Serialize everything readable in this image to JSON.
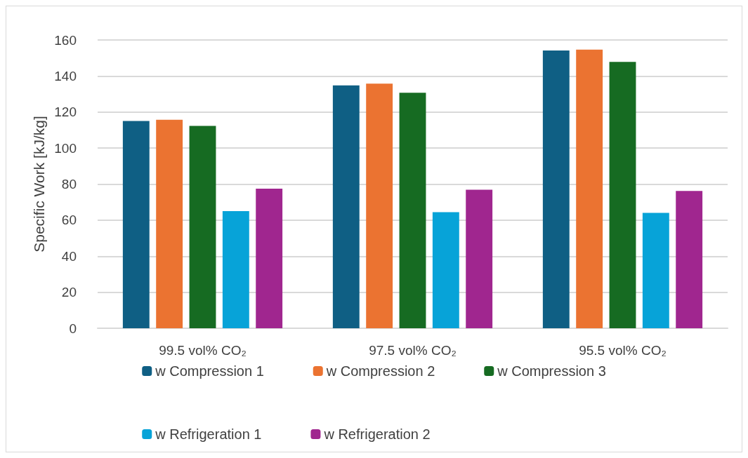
{
  "chart_data": {
    "type": "bar",
    "ylabel": "Specific Work [kJ/kg]",
    "categories": [
      "99.5 vol% CO₂",
      "97.5 vol% CO₂",
      "95.5 vol% CO₂"
    ],
    "series": [
      {
        "name": "w Compression 1",
        "color": "#0f5f84",
        "values": [
          115,
          134.8,
          154.2
        ]
      },
      {
        "name": "w Compression 2",
        "color": "#eb7331",
        "values": [
          115.7,
          135.8,
          154.6
        ]
      },
      {
        "name": "w Compression 3",
        "color": "#166b22",
        "values": [
          112.3,
          130.7,
          147.8
        ]
      },
      {
        "name": "w Refrigeration 1",
        "color": "#07a3d8",
        "values": [
          65,
          64.4,
          64
        ]
      },
      {
        "name": "w Refrigeration 2",
        "color": "#a0268f",
        "values": [
          77.5,
          76.9,
          76.2
        ]
      }
    ],
    "ylim": [
      0,
      160
    ],
    "yticks": [
      0,
      20,
      40,
      60,
      80,
      100,
      120,
      140,
      160
    ],
    "grid": "y",
    "legend": "bottom"
  }
}
